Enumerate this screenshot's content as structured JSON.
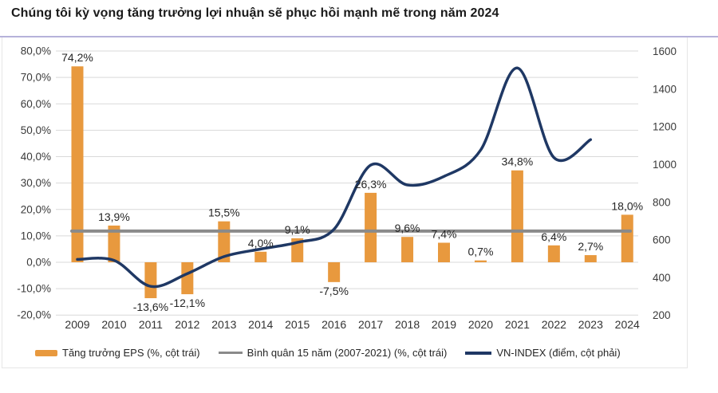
{
  "title": "Chúng tôi kỳ vọng tăng trưởng lợi nhuận sẽ phục hồi mạnh mẽ trong năm 2024",
  "chart_data": {
    "type": "combo",
    "categories": [
      "2009",
      "2010",
      "2011",
      "2012",
      "2013",
      "2014",
      "2015",
      "2016",
      "2017",
      "2018",
      "2019",
      "2020",
      "2021",
      "2022",
      "2023",
      "2024"
    ],
    "series": [
      {
        "name": "Tăng trưởng EPS (%, cột trái)",
        "type": "bar",
        "axis": "left",
        "color": "#E8993E",
        "values": [
          74.2,
          13.9,
          -13.6,
          -12.1,
          15.5,
          4.0,
          9.1,
          -7.5,
          26.3,
          9.6,
          7.4,
          0.7,
          34.8,
          6.4,
          2.7,
          18.0
        ],
        "labels": [
          "74,2%",
          "13,9%",
          "-13,6%",
          "-12,1%",
          "15,5%",
          "4,0%",
          "9,1%",
          "-7,5%",
          "26,3%",
          "9,6%",
          "7,4%",
          "0,7%",
          "34,8%",
          "6,4%",
          "2,7%",
          "18,0%"
        ]
      },
      {
        "name": "Bình quân 15 năm (2007-2021) (%, cột trái)",
        "type": "line",
        "style": "flat-average",
        "axis": "left",
        "color": "#8A8A8A",
        "value": 11.8
      },
      {
        "name": "VN-INDEX (điểm, cột phải)",
        "type": "line",
        "style": "smooth",
        "axis": "right",
        "color": "#1F3864",
        "categories": [
          "2009",
          "2010",
          "2011",
          "2012",
          "2013",
          "2014",
          "2015",
          "2016",
          "2017",
          "2018",
          "2019",
          "2020",
          "2021",
          "2022",
          "2023"
        ],
        "values": [
          495,
          490,
          352,
          420,
          510,
          550,
          585,
          655,
          995,
          890,
          935,
          1075,
          1510,
          1035,
          1130
        ]
      }
    ],
    "left_axis": {
      "min": -20,
      "max": 80,
      "step": 10,
      "unit": "%",
      "labels": [
        "80,0%",
        "70,0%",
        "60,0%",
        "50,0%",
        "40,0%",
        "30,0%",
        "20,0%",
        "10,0%",
        "0,0%",
        "-10,0%",
        "-20,0%"
      ]
    },
    "right_axis": {
      "min": 200,
      "max": 1600,
      "step": 200,
      "labels": [
        "1600",
        "1400",
        "1200",
        "1000",
        "800",
        "600",
        "400",
        "200"
      ]
    },
    "grid": true,
    "legend_position": "bottom"
  }
}
